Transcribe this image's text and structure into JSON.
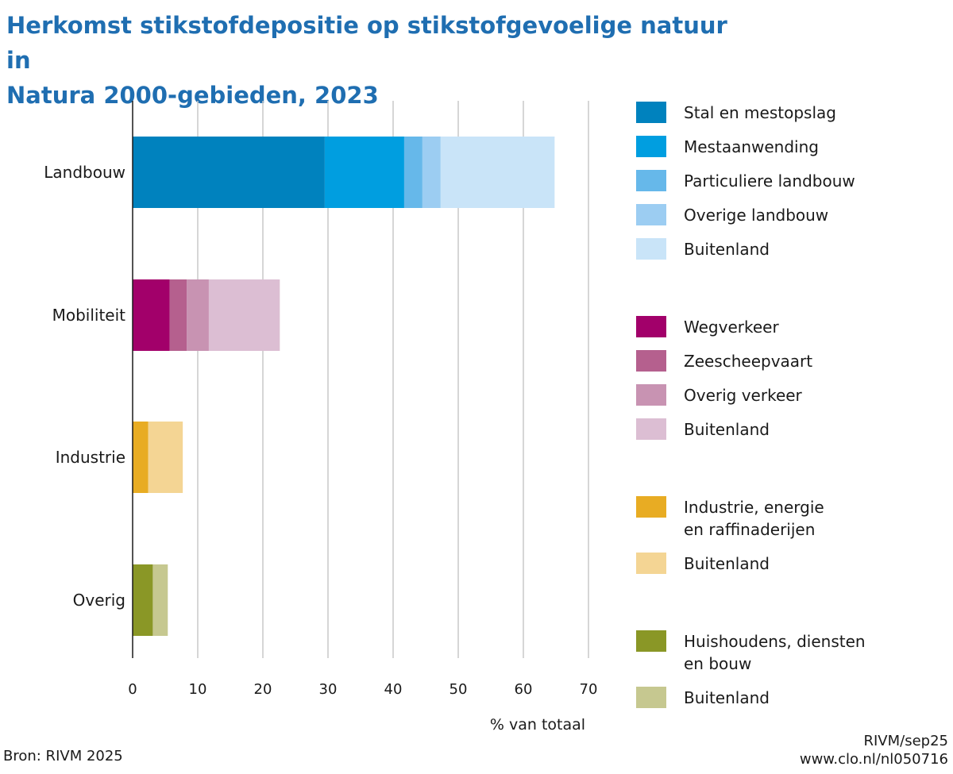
{
  "title_lines": [
    "Herkomst stikstofdepositie op stikstofgevoelige natuur in",
    "Natura 2000-gebieden, 2023"
  ],
  "source": "Bron: RIVM 2025",
  "credit_lines": [
    "RIVM/sep25",
    "www.clo.nl/nl050716"
  ],
  "chart_data": {
    "type": "bar",
    "orientation": "horizontal",
    "stacked": true,
    "title": "Herkomst stikstofdepositie op stikstofgevoelige natuur in Natura 2000-gebieden, 2023",
    "xlabel": "% van totaal",
    "ylabel": "",
    "xlim": [
      0,
      70
    ],
    "xticks": [
      0,
      10,
      20,
      30,
      40,
      50,
      60,
      70
    ],
    "grid": "vertical",
    "legend_position": "right",
    "categories": [
      "Landbouw",
      "Mobiliteit",
      "Industrie",
      "Overig"
    ],
    "groups": [
      {
        "category": "Landbouw",
        "segments": [
          {
            "name": "Stal en mestopslag",
            "value": 29.5,
            "color": "#0082be"
          },
          {
            "name": "Mestaanwending",
            "value": 12.2,
            "color": "#009ee0"
          },
          {
            "name": "Particuliere landbouw",
            "value": 2.8,
            "color": "#66b8ea"
          },
          {
            "name": "Overige landbouw",
            "value": 2.8,
            "color": "#9ccdf2"
          },
          {
            "name": "Buitenland",
            "value": 17.5,
            "color": "#c9e4f8"
          }
        ]
      },
      {
        "category": "Mobiliteit",
        "segments": [
          {
            "name": "Wegverkeer",
            "value": 5.7,
            "color": "#a2006a"
          },
          {
            "name": "Zeescheepvaart",
            "value": 2.6,
            "color": "#b5608e"
          },
          {
            "name": "Overig verkeer",
            "value": 3.4,
            "color": "#c893b2"
          },
          {
            "name": "Buitenland",
            "value": 10.9,
            "color": "#dcbed3"
          }
        ]
      },
      {
        "category": "Industrie",
        "segments": [
          {
            "name": "Industrie, energie en raffinaderijen",
            "label_lines": [
              "Industrie, energie",
              "en raffinaderijen"
            ],
            "value": 2.4,
            "color": "#e8ac23"
          },
          {
            "name": "Buitenland",
            "value": 5.3,
            "color": "#f4d594"
          }
        ]
      },
      {
        "category": "Overig",
        "segments": [
          {
            "name": "Huishoudens, diensten en bouw",
            "label_lines": [
              "Huishoudens, diensten",
              "en bouw"
            ],
            "value": 3.1,
            "color": "#8a9726"
          },
          {
            "name": "Buitenland",
            "value": 2.3,
            "color": "#c6c890"
          }
        ]
      }
    ]
  }
}
